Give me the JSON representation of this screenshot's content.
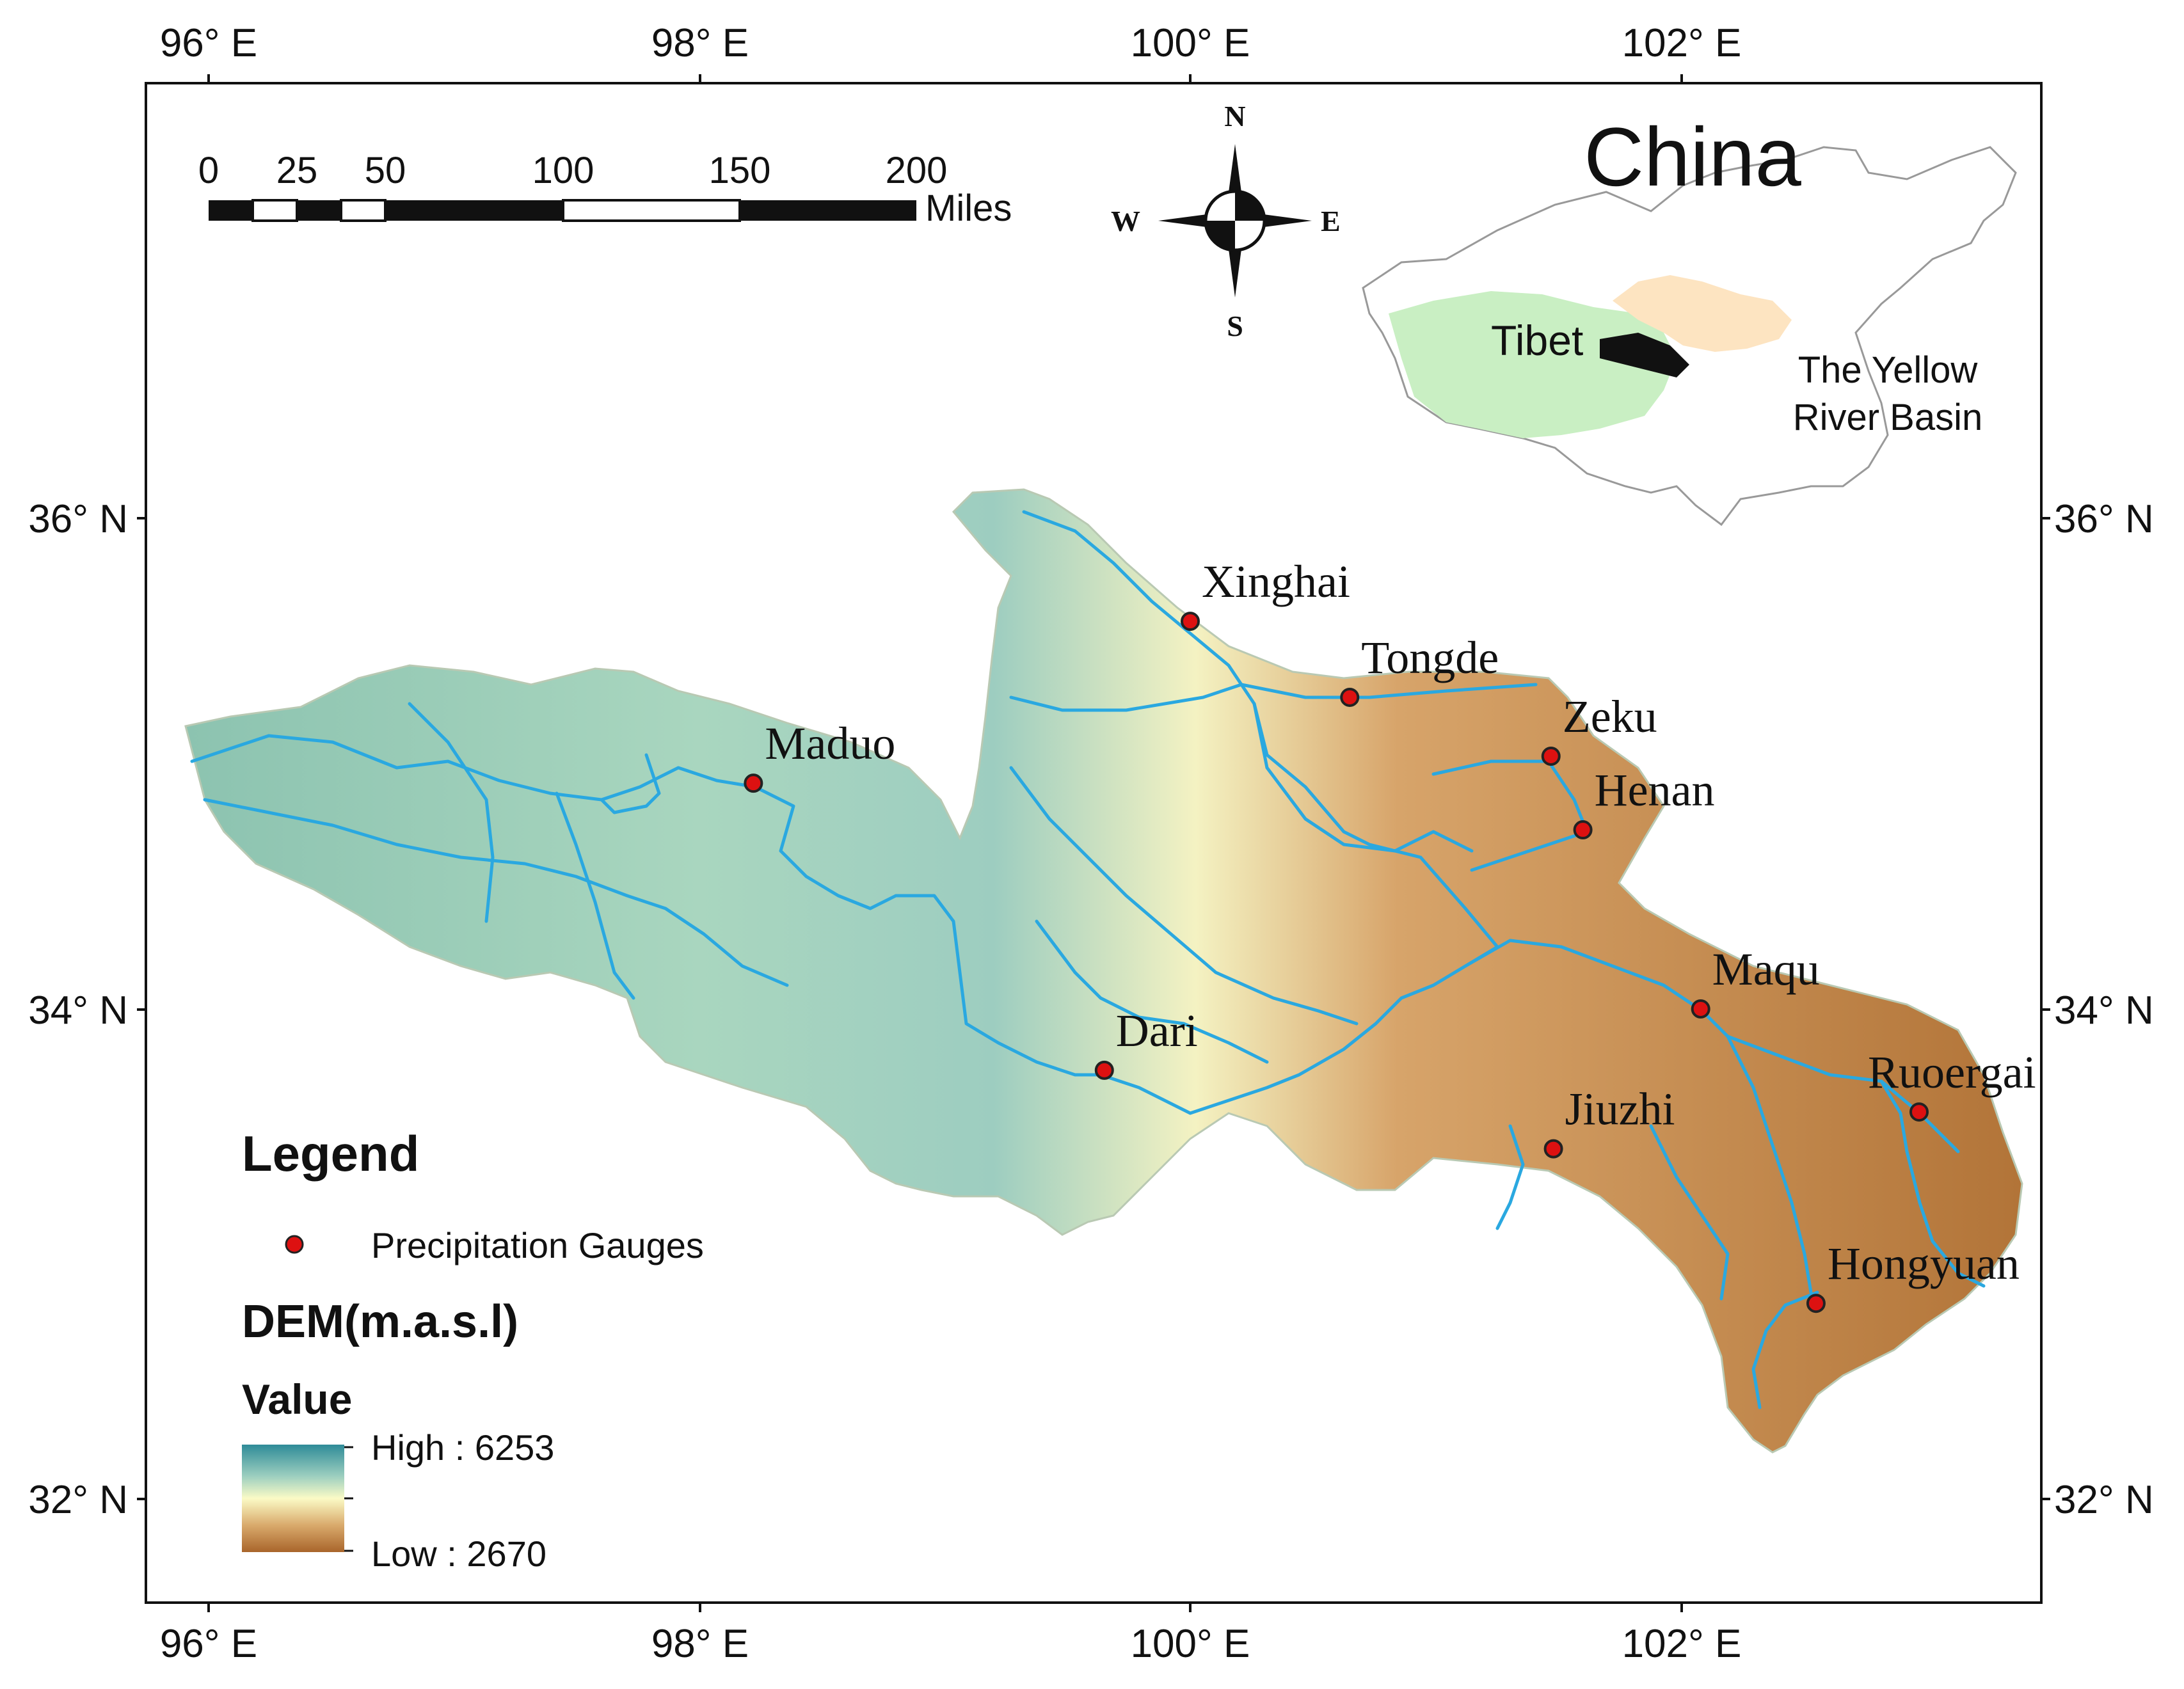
{
  "graticule": {
    "longitude_labels": [
      "96° E",
      "98° E",
      "100° E",
      "102° E"
    ],
    "latitude_labels": [
      "36° N",
      "34° N",
      "32° N"
    ]
  },
  "scale_bar": {
    "ticks": [
      "0",
      "25",
      "50",
      "100",
      "150",
      "200"
    ],
    "unit": "Miles"
  },
  "compass": {
    "n": "N",
    "s": "S",
    "e": "E",
    "w": "W"
  },
  "inset": {
    "title": "China",
    "region_label": "Tibet",
    "basin_label_line1": "The Yellow",
    "basin_label_line2": "River Basin",
    "colors": {
      "tibet": "#c9efc3",
      "yellow_river_basin": "#fde4c1",
      "study_area": "#111111"
    }
  },
  "stations": [
    {
      "name": "Xinghai",
      "lon": 100.0,
      "lat": 35.58
    },
    {
      "name": "Tongde",
      "lon": 100.65,
      "lat": 35.27
    },
    {
      "name": "Zeku",
      "lon": 101.47,
      "lat": 35.03
    },
    {
      "name": "Henan",
      "lon": 101.6,
      "lat": 34.73
    },
    {
      "name": "Maduo",
      "lon": 98.22,
      "lat": 34.92
    },
    {
      "name": "Maqu",
      "lon": 102.08,
      "lat": 34.0
    },
    {
      "name": "Dari",
      "lon": 99.65,
      "lat": 33.75
    },
    {
      "name": "Ruoergai",
      "lon": 102.97,
      "lat": 33.58
    },
    {
      "name": "Jiuzhi",
      "lon": 101.48,
      "lat": 33.43
    },
    {
      "name": "Hongyuan",
      "lon": 102.55,
      "lat": 32.8
    }
  ],
  "legend": {
    "title": "Legend",
    "gauge_label": "Precipitation Gauges",
    "dem_title": "DEM(m.a.s.l)",
    "value_title": "Value",
    "high_label": "High : 6253",
    "low_label": "Low : 2670",
    "ramp_colors": [
      "#2e8b98",
      "#9fd0c0",
      "#fbfbc6",
      "#d9aa6c",
      "#a9652b"
    ]
  },
  "colors": {
    "gauge_fill": "#dd1111",
    "river": "#2aa8e0",
    "high_elevation": "#7fb9ad",
    "mid_elevation": "#e8edb8",
    "low_elevation": "#b97b3e"
  }
}
